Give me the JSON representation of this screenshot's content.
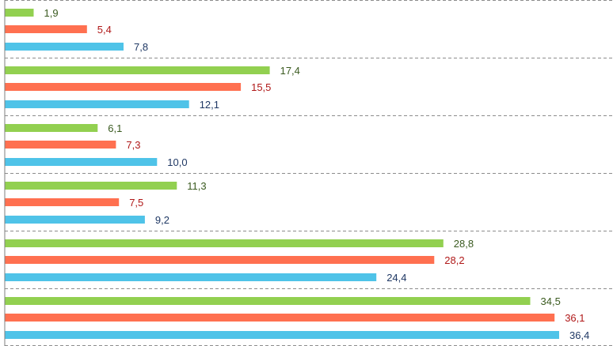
{
  "chart_data": {
    "type": "bar",
    "orientation": "horizontal",
    "grid": "dashed separators between groups",
    "legend": "none",
    "xlim": [
      0,
      36.4
    ],
    "groups": [
      {
        "values": [
          "1,9",
          "5,4",
          "7,8"
        ],
        "numeric": [
          1.9,
          5.4,
          7.8
        ]
      },
      {
        "values": [
          "17,4",
          "15,5",
          "12,1"
        ],
        "numeric": [
          17.4,
          15.5,
          12.1
        ]
      },
      {
        "values": [
          "6,1",
          "7,3",
          "10,0"
        ],
        "numeric": [
          6.1,
          7.3,
          10.0
        ]
      },
      {
        "values": [
          "11,3",
          "7,5",
          "9,2"
        ],
        "numeric": [
          11.3,
          7.5,
          9.2
        ]
      },
      {
        "values": [
          "28,8",
          "28,2",
          "24,4"
        ],
        "numeric": [
          28.8,
          28.2,
          24.4
        ]
      },
      {
        "values": [
          "34,5",
          "36,1",
          "36,4"
        ],
        "numeric": [
          34.5,
          36.1,
          36.4
        ]
      }
    ],
    "series_colors": [
      "#92d050",
      "#ff7050",
      "#4fc3e8"
    ],
    "label_colors": [
      "#3a5a1f",
      "#b01818",
      "#1f3864"
    ],
    "axis_color": "#7f7f7f",
    "grid_color": "#8c8c8c"
  }
}
